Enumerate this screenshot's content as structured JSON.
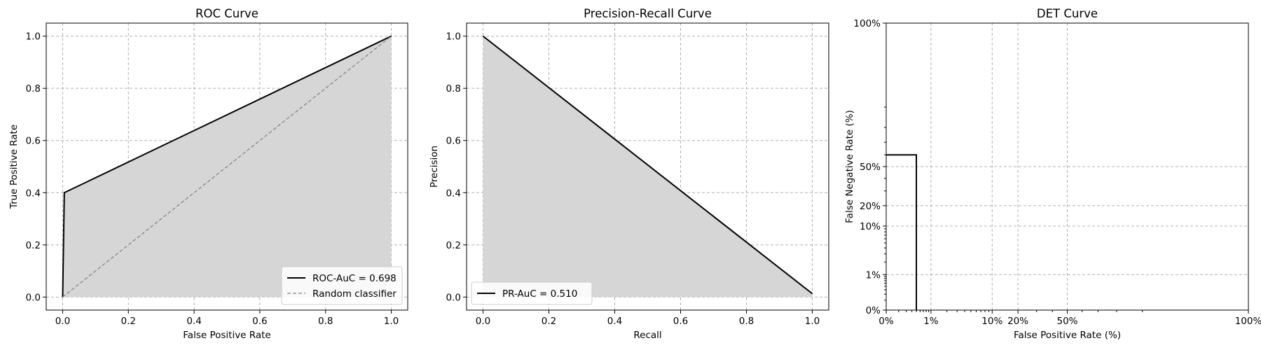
{
  "chart_data": [
    {
      "type": "area",
      "title": "ROC Curve",
      "xlabel": "False Positive Rate",
      "ylabel": "True Positive Rate",
      "xlim": [
        -0.05,
        1.05
      ],
      "ylim": [
        -0.05,
        1.05
      ],
      "xticks": [
        0.0,
        0.2,
        0.4,
        0.6,
        0.8,
        1.0
      ],
      "yticks": [
        0.0,
        0.2,
        0.4,
        0.6,
        0.8,
        1.0
      ],
      "xtick_labels": [
        "0.0",
        "0.2",
        "0.4",
        "0.6",
        "0.8",
        "1.0"
      ],
      "ytick_labels": [
        "0.0",
        "0.2",
        "0.4",
        "0.6",
        "0.8",
        "1.0"
      ],
      "grid": true,
      "legend_position": "lower-right",
      "series": [
        {
          "name": "ROC-AuC = 0.698",
          "style": "solid",
          "color": "#000000",
          "filled": true,
          "x": [
            0.0,
            0.005,
            1.0
          ],
          "y": [
            0.0,
            0.4,
            1.0
          ]
        },
        {
          "name": "Random classifier",
          "style": "dashed",
          "color": "#808080",
          "filled": false,
          "x": [
            0.0,
            1.0
          ],
          "y": [
            0.0,
            1.0
          ]
        }
      ]
    },
    {
      "type": "area",
      "title": "Precision-Recall Curve",
      "xlabel": "Recall",
      "ylabel": "Precision",
      "xlim": [
        -0.05,
        1.05
      ],
      "ylim": [
        -0.05,
        1.05
      ],
      "xticks": [
        0.0,
        0.2,
        0.4,
        0.6,
        0.8,
        1.0
      ],
      "yticks": [
        0.0,
        0.2,
        0.4,
        0.6,
        0.8,
        1.0
      ],
      "xtick_labels": [
        "0.0",
        "0.2",
        "0.4",
        "0.6",
        "0.8",
        "1.0"
      ],
      "ytick_labels": [
        "0.0",
        "0.2",
        "0.4",
        "0.6",
        "0.8",
        "1.0"
      ],
      "grid": true,
      "legend_position": "lower-left",
      "series": [
        {
          "name": "PR-AuC = 0.510",
          "style": "solid",
          "color": "#000000",
          "filled": true,
          "x": [
            0.0,
            1.0
          ],
          "y": [
            1.0,
            0.013
          ]
        }
      ]
    },
    {
      "type": "line",
      "title": "DET Curve",
      "xlabel": "False Positive Rate (%)",
      "ylabel": "False Negative Rate (%)",
      "scale": "normal-deviate (probit)",
      "xlim": [
        0.0,
        1.0
      ],
      "ylim": [
        0.0,
        1.0
      ],
      "xticks": [
        0.0,
        0.01,
        0.1,
        0.2,
        0.5,
        1.0
      ],
      "yticks": [
        0.0,
        0.01,
        0.1,
        0.2,
        0.5,
        1.0
      ],
      "xtick_labels": [
        "0%",
        "1%",
        "10%",
        "20%",
        "50%",
        "100%"
      ],
      "ytick_labels": [
        "0%",
        "1%",
        "10%",
        "20%",
        "50%",
        "100%"
      ],
      "grid": true,
      "series": [
        {
          "style": "solid",
          "color": "#000000",
          "x": [
            0.0,
            0.005,
            0.005
          ],
          "y": [
            0.6,
            0.6,
            0.0
          ]
        }
      ]
    }
  ],
  "colors": {
    "fill": "#d6d6d6",
    "grid": "#b0b0b0",
    "line": "#000000",
    "diagonal": "#808080"
  }
}
